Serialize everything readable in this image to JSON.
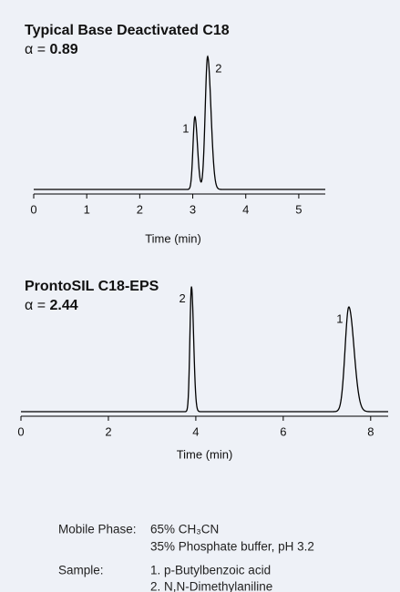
{
  "chart_data": [
    {
      "type": "chromatogram",
      "title": "Typical Base Deactivated C18",
      "alpha_symbol": "α =",
      "alpha_value": "0.89",
      "x_label": "Time (min)",
      "xlim": [
        0,
        5.5
      ],
      "xticks": [
        0,
        1,
        2,
        3,
        4,
        5
      ],
      "ylim": [
        0,
        150
      ],
      "color": "#000000",
      "peaks": [
        {
          "label": "1",
          "time": 3.04,
          "height": 80,
          "width": 0.035
        },
        {
          "label": "2",
          "time": 3.28,
          "height": 146,
          "width": 0.045
        }
      ]
    },
    {
      "type": "chromatogram",
      "title": "ProntoSIL C18-EPS",
      "alpha_symbol": "α =",
      "alpha_value": "2.44",
      "x_label": "Time (min)",
      "xlim": [
        0,
        8.4
      ],
      "xticks": [
        0,
        2,
        4,
        6,
        8
      ],
      "ylim": [
        0,
        120
      ],
      "color": "#000000",
      "peaks": [
        {
          "label": "2",
          "time": 3.9,
          "height": 110,
          "width": 0.035
        },
        {
          "label": "1",
          "time": 7.5,
          "height": 92,
          "width": 0.085
        }
      ]
    }
  ],
  "conditions": {
    "mobile_phase_label": "Mobile Phase:",
    "mobile_phase": [
      "65% CH₃CN",
      "35% Phosphate buffer, pH 3.2"
    ],
    "sample_label": "Sample:",
    "sample": [
      "1. p-Butylbenzoic acid",
      "2. N,N-Dimethylaniline"
    ]
  }
}
